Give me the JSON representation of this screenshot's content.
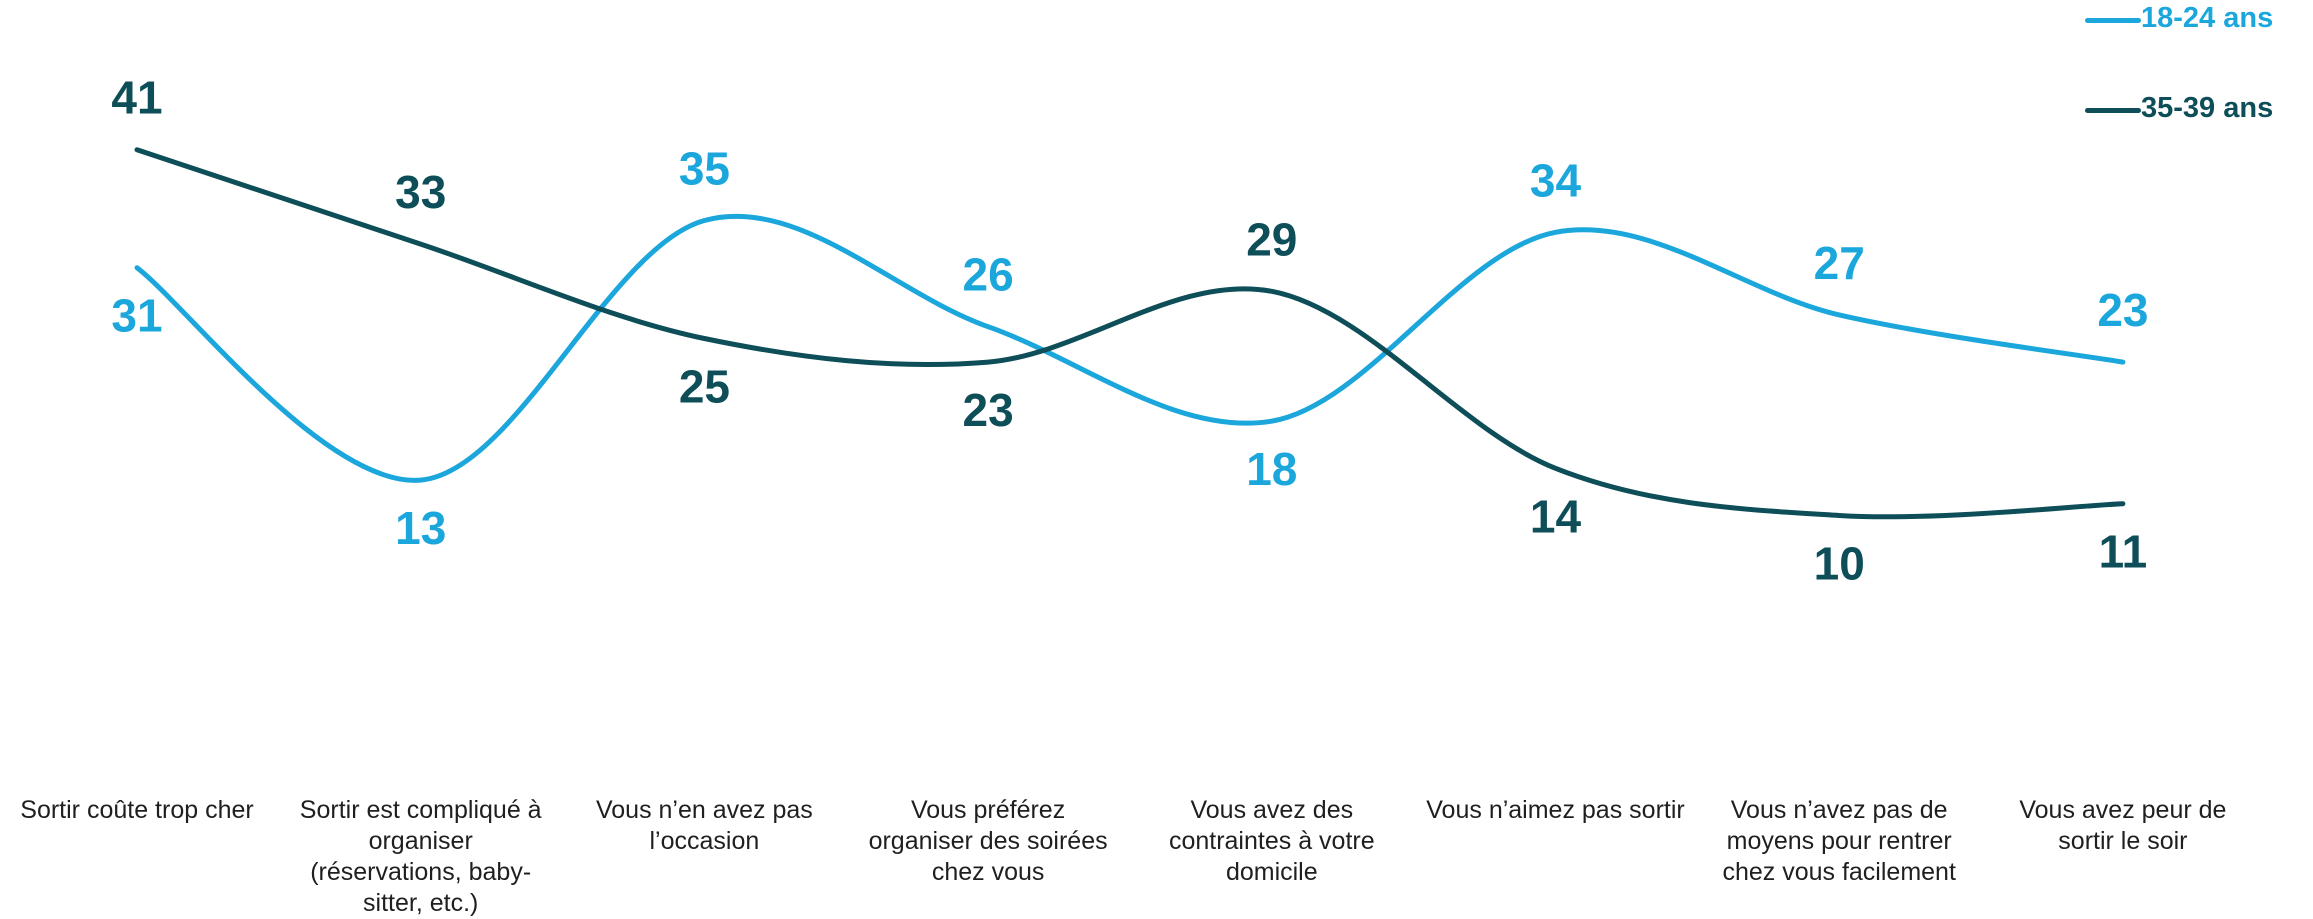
{
  "chart_data": {
    "type": "line",
    "categories": [
      "Sortir coûte trop cher",
      "Sortir est compliqué à organiser (réservations, baby-sitter, etc.)",
      "Vous n’en avez pas l’occasion",
      "Vous préférez organiser des soirées chez vous",
      "Vous avez des contraintes à votre domicile",
      "Vous n’aimez pas sortir",
      "Vous n’avez pas de moyens pour rentrer chez vous facilement",
      "Vous avez peur de sortir le soir"
    ],
    "series": [
      {
        "name": "18-24 ans",
        "color": "#1ba6dc",
        "values": [
          31,
          13,
          35,
          26,
          18,
          34,
          27,
          23
        ]
      },
      {
        "name": "35-39 ans",
        "color": "#0d4e58",
        "values": [
          41,
          33,
          25,
          23,
          29,
          14,
          10,
          11
        ]
      }
    ],
    "smooth": true,
    "data_labels": true,
    "grid": false,
    "legend_position": "top-right"
  }
}
